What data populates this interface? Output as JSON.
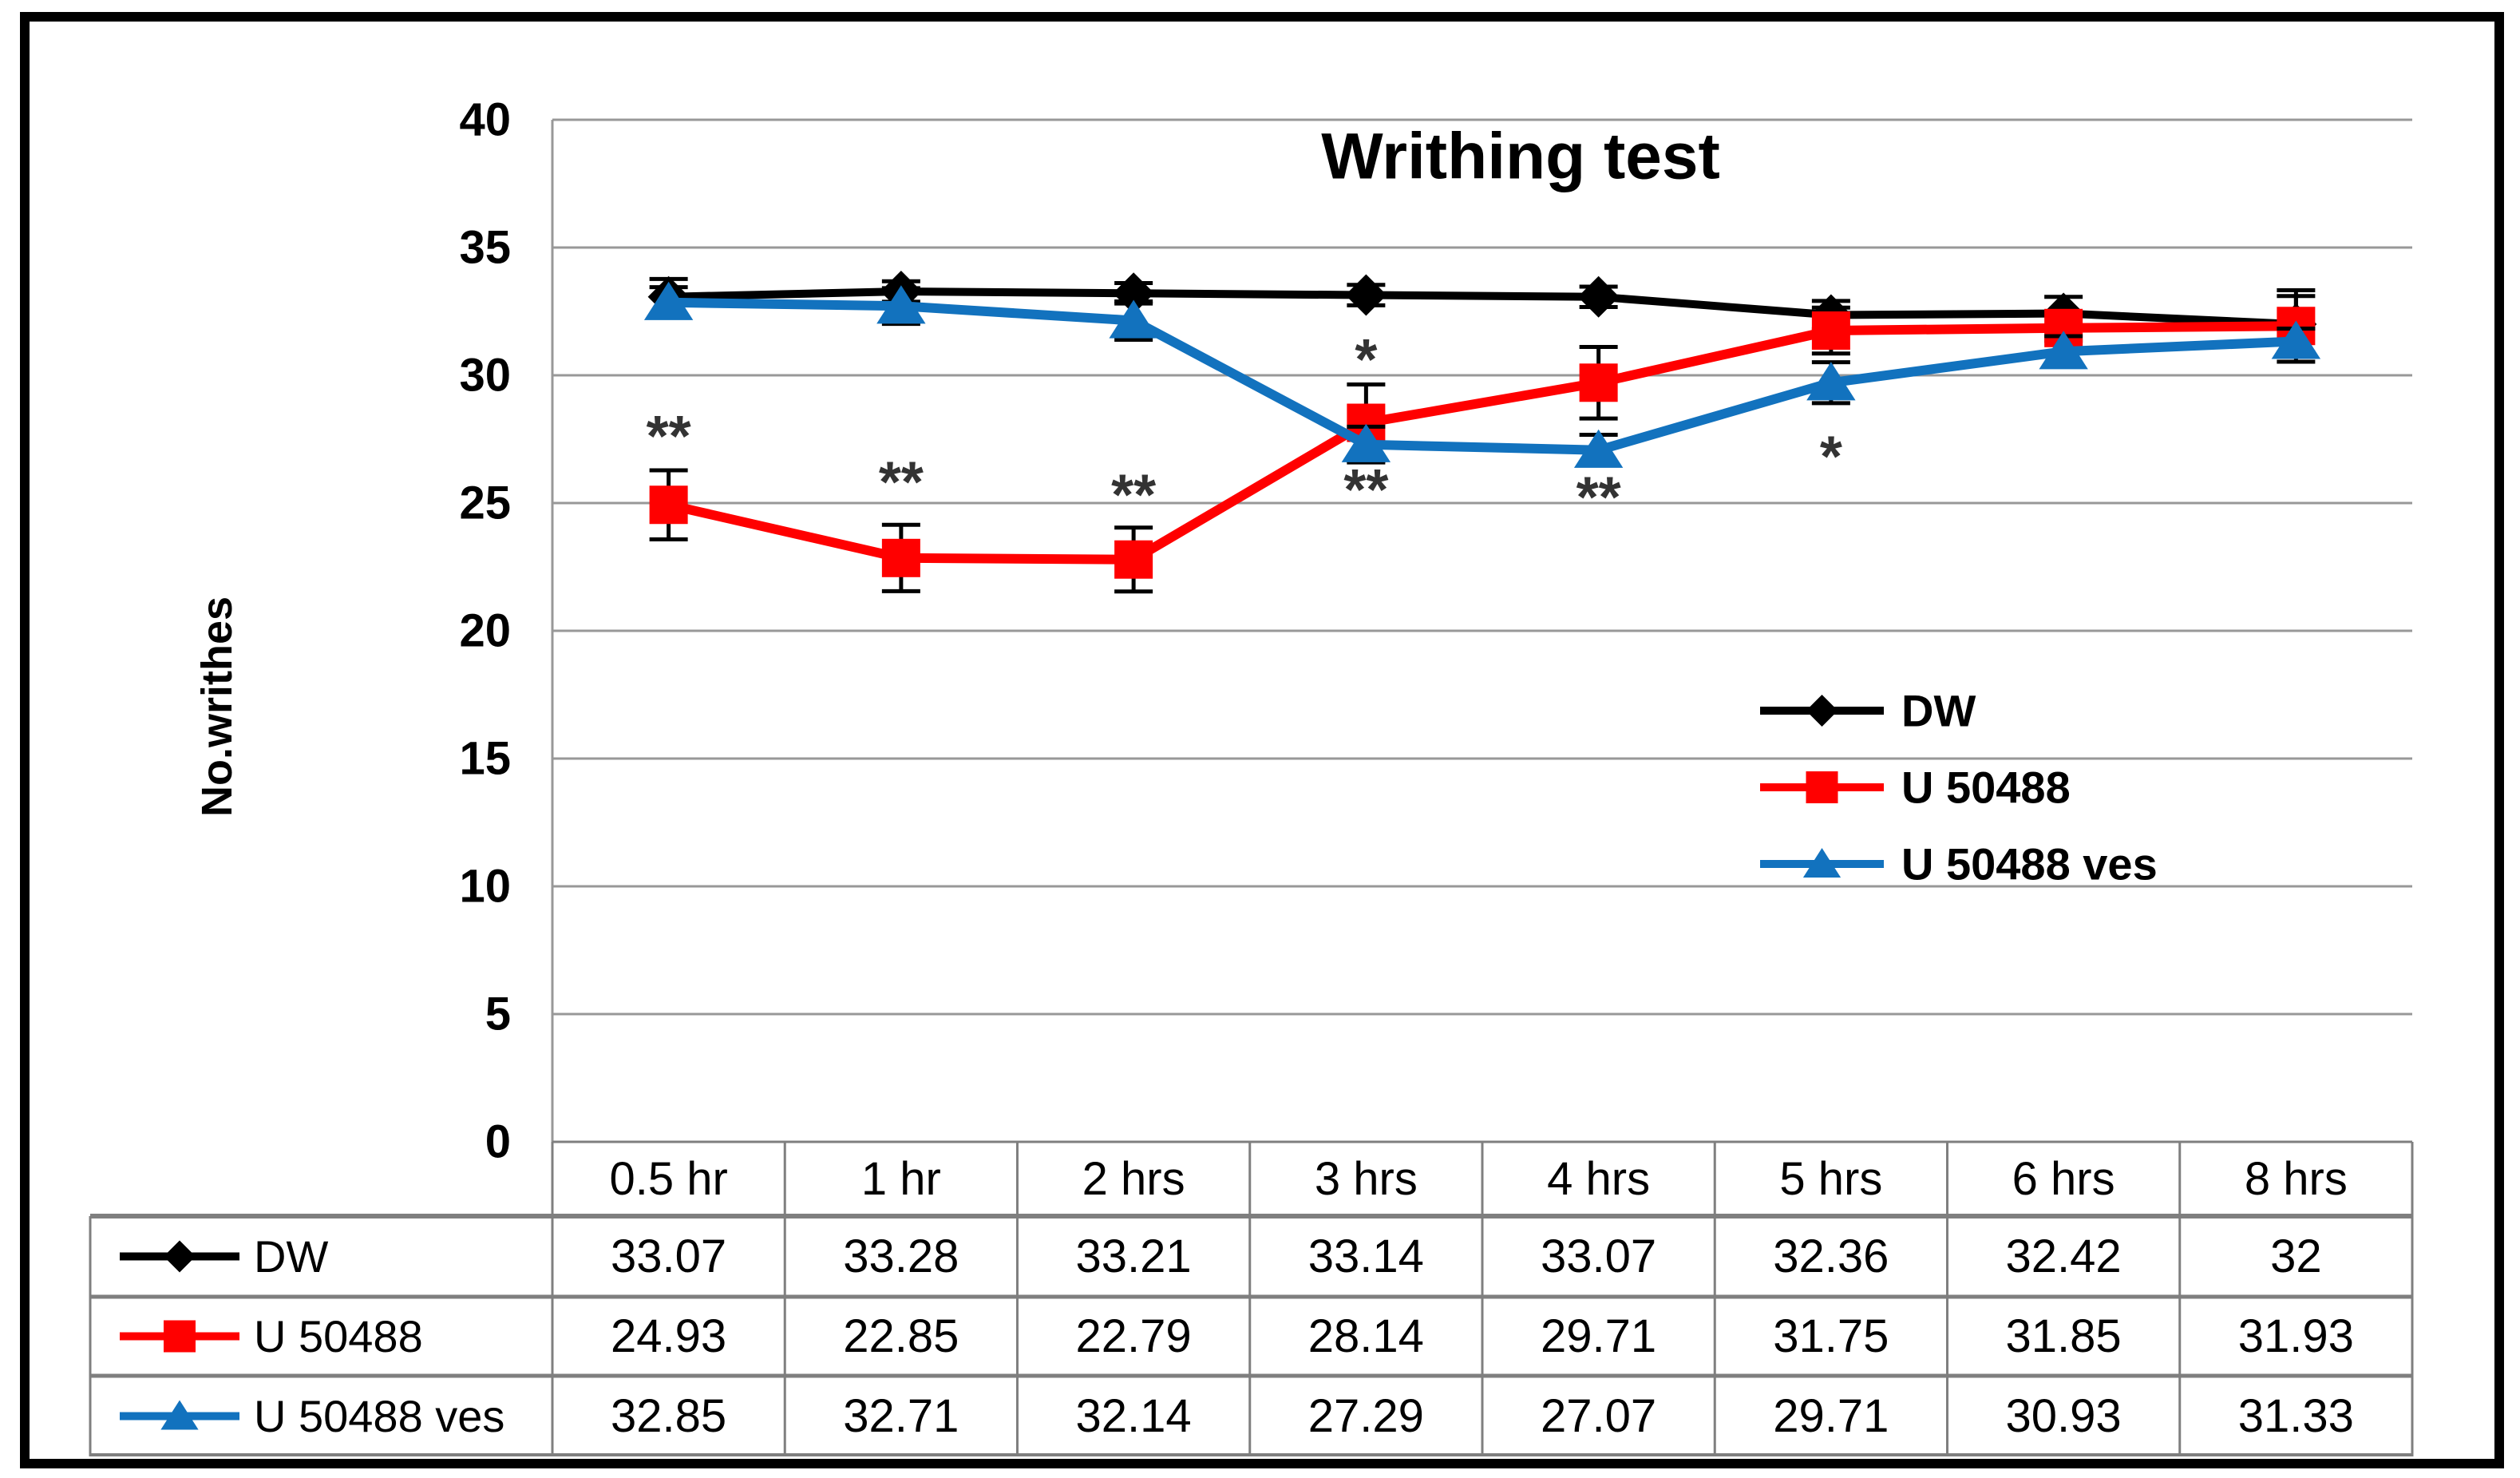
{
  "figure": {
    "background": "#ffffff",
    "frame_color": "#000000"
  },
  "chart_data": {
    "type": "line",
    "title": "Writhing test",
    "ylabel": "No.writhes",
    "xlabel": "",
    "ylim": [
      0,
      40
    ],
    "ytick_step": 5,
    "yticks": [
      0,
      5,
      10,
      15,
      20,
      25,
      30,
      35,
      40
    ],
    "grid": true,
    "grid_color": "#989898",
    "error_bar_color": "#000000",
    "annotation_color": "#333333",
    "legend_position": "inside-right",
    "show_data_table": true,
    "categories": [
      "0.5 hr",
      "1 hr",
      "2 hrs",
      "3 hrs",
      "4 hrs",
      "5 hrs",
      "6 hrs",
      "8 hrs"
    ],
    "series": [
      {
        "name": "DW",
        "color": "#000000",
        "marker": "diamond",
        "values": [
          33.07,
          33.28,
          33.21,
          33.14,
          33.07,
          32.36,
          32.42,
          32
        ],
        "errors": [
          0.7,
          0.4,
          0.4,
          0.4,
          0.4,
          0.55,
          0.65,
          1.1
        ]
      },
      {
        "name": "U 50488",
        "color": "#FF0000",
        "marker": "square",
        "values": [
          24.93,
          22.85,
          22.79,
          28.14,
          29.71,
          31.75,
          31.85,
          31.93
        ],
        "errors": [
          1.35,
          1.3,
          1.25,
          1.5,
          1.4,
          0.9,
          0.5,
          1.4
        ]
      },
      {
        "name": "U 50488 ves",
        "color": "#1272BE",
        "marker": "triangle",
        "values": [
          32.85,
          32.71,
          32.14,
          27.29,
          27.07,
          29.71,
          30.93,
          31.33
        ],
        "errors": [
          0.6,
          0.7,
          0.75,
          0.7,
          0.6,
          0.8,
          0.6,
          0.5
        ]
      }
    ],
    "annotations": [
      {
        "text": "**",
        "category_index": 0,
        "value": 27.6
      },
      {
        "text": "**",
        "category_index": 1,
        "value": 25.8
      },
      {
        "text": "**",
        "category_index": 2,
        "value": 25.3
      },
      {
        "text": "*",
        "category_index": 3,
        "value": 30.6
      },
      {
        "text": "**",
        "category_index": 3,
        "value": 25.5
      },
      {
        "text": "**",
        "category_index": 4,
        "value": 25.2
      },
      {
        "text": "*",
        "category_index": 5,
        "value": 26.8
      }
    ]
  }
}
